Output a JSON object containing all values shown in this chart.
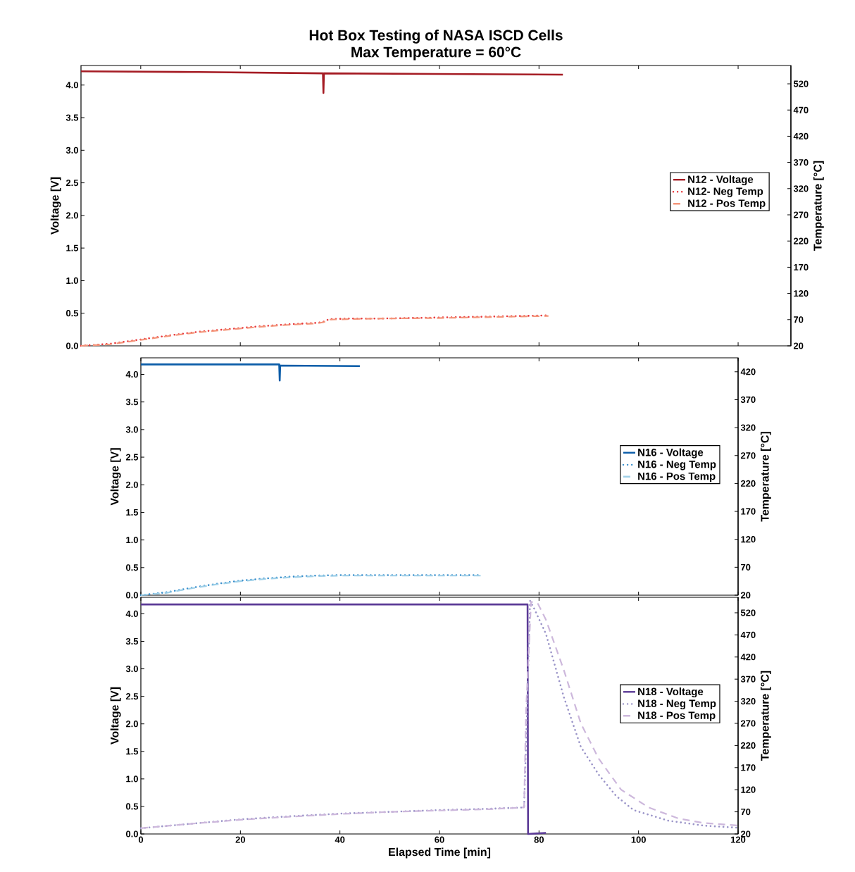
{
  "chart_data": [
    {
      "type": "line",
      "title": "Hot Box Testing of NASA ISCD Cells",
      "subtitle": "Max Temperature = 60°C",
      "ylabel": "Voltage [V]",
      "y2label": "Temperature [°C]",
      "xlim": [
        -12.0,
        130.6
      ],
      "xticks": [
        0,
        20,
        40,
        60,
        80,
        100,
        120
      ],
      "ylim": [
        0,
        4.3
      ],
      "yticks": [
        {
          "value": 0,
          "label": "0.0"
        },
        {
          "value": 0.5,
          "label": "0.5"
        },
        {
          "value": 1,
          "label": "1.0"
        },
        {
          "value": 1.5,
          "label": "1.5"
        },
        {
          "value": 2,
          "label": "2.0"
        },
        {
          "value": 2.5,
          "label": "2.5"
        },
        {
          "value": 3,
          "label": "3.0"
        },
        {
          "value": 3.5,
          "label": "3.5"
        },
        {
          "value": 4,
          "label": "4.0"
        }
      ],
      "y2lim": [
        20,
        555
      ],
      "y2ticks": [
        20,
        70,
        120,
        170,
        220,
        270,
        320,
        370,
        420,
        470,
        520
      ],
      "tick_labels": "y",
      "legend": "right",
      "series": [
        {
          "name": "N12 - Voltage",
          "color": "#a51c24",
          "line_style": "solid",
          "x": [
            -12.0,
            11.7,
            36.6,
            36.7,
            36.8,
            59.3,
            84.8
          ],
          "values": [
            4.21,
            4.2,
            4.18,
            3.88,
            4.18,
            4.17,
            4.16
          ]
        },
        {
          "name": "N12- Neg Temp",
          "color": "#e8383d",
          "line_style": "dotted",
          "axis": "y2",
          "x": [
            -12.0,
            -6.1,
            -0.1,
            5.8,
            11.7,
            17.7,
            23.6,
            29.6,
            35.5,
            36.7,
            37.9,
            41.5,
            47.4,
            59.3,
            71.2,
            81.9
          ],
          "values": [
            20,
            24,
            32,
            40,
            47,
            52,
            57,
            61,
            64,
            66,
            71,
            72,
            72,
            74,
            76,
            78
          ]
        },
        {
          "name": "N12 - Pos Temp",
          "color": "#f4957a",
          "line_style": "dashed",
          "axis": "y2",
          "x": [
            -12.0,
            -6.1,
            -0.1,
            5.8,
            11.7,
            17.7,
            23.6,
            29.6,
            35.5,
            36.7,
            37.9,
            41.5,
            47.4,
            59.3,
            71.2,
            81.9
          ],
          "values": [
            20,
            23,
            31,
            39,
            46,
            51,
            56,
            60,
            63,
            65,
            70,
            71,
            72,
            73,
            75,
            77
          ]
        }
      ]
    },
    {
      "type": "line",
      "ylabel": "Voltage [V]",
      "y2label": "Temperature [°C]",
      "xlim": [
        0,
        120
      ],
      "xticks": [
        0,
        20,
        40,
        60,
        80,
        100,
        120
      ],
      "ylim": [
        0,
        4.3
      ],
      "yticks": [
        {
          "value": 0,
          "label": "0.0"
        },
        {
          "value": 0.5,
          "label": "0.5"
        },
        {
          "value": 1,
          "label": "1.0"
        },
        {
          "value": 1.5,
          "label": "1.5"
        },
        {
          "value": 2,
          "label": "2.0"
        },
        {
          "value": 2.5,
          "label": "2.5"
        },
        {
          "value": 3,
          "label": "3.0"
        },
        {
          "value": 3.5,
          "label": "3.5"
        },
        {
          "value": 4,
          "label": "4.0"
        }
      ],
      "y2lim": [
        20,
        445
      ],
      "y2ticks": [
        20,
        70,
        120,
        170,
        220,
        270,
        320,
        370,
        420
      ],
      "tick_labels": "y",
      "legend": "right",
      "series": [
        {
          "name": "N16 - Voltage",
          "color": "#0a5ca8",
          "line_style": "solid",
          "x": [
            0,
            27.8,
            27.9,
            28,
            44
          ],
          "values": [
            4.18,
            4.18,
            3.89,
            4.16,
            4.15
          ]
        },
        {
          "name": "N16 - Neg Temp",
          "color": "#3a8fcc",
          "line_style": "dotted",
          "axis": "y2",
          "x": [
            0,
            5,
            10,
            15,
            20,
            25,
            30,
            35,
            40,
            50,
            60,
            68.3
          ],
          "values": [
            20,
            25,
            33,
            40,
            46,
            50,
            53,
            55,
            56,
            56,
            56,
            56
          ]
        },
        {
          "name": "N16 - Pos Temp",
          "color": "#9fd0e8",
          "line_style": "dashed",
          "axis": "y2",
          "x": [
            0,
            5,
            10,
            15,
            20,
            25,
            30,
            35,
            40,
            50,
            60,
            68.3
          ],
          "values": [
            20,
            24,
            32,
            39,
            45,
            49,
            52,
            54,
            55,
            55,
            55,
            55
          ]
        }
      ]
    },
    {
      "type": "line",
      "xlabel": "Elapsed Time [min]",
      "ylabel": "Voltage [V]",
      "y2label": "Temperature [°C]",
      "xlim": [
        0,
        120
      ],
      "xticks": [
        0,
        20,
        40,
        60,
        80,
        100,
        120
      ],
      "ylim": [
        0,
        4.3
      ],
      "yticks": [
        {
          "value": 0,
          "label": "0.0"
        },
        {
          "value": 0.5,
          "label": "0.5"
        },
        {
          "value": 1,
          "label": "1.0"
        },
        {
          "value": 1.5,
          "label": "1.5"
        },
        {
          "value": 2,
          "label": "2.0"
        },
        {
          "value": 2.5,
          "label": "2.5"
        },
        {
          "value": 3,
          "label": "3.0"
        },
        {
          "value": 3.5,
          "label": "3.5"
        },
        {
          "value": 4,
          "label": "4.0"
        }
      ],
      "y2lim": [
        20,
        555
      ],
      "y2ticks": [
        20,
        70,
        120,
        170,
        220,
        270,
        320,
        370,
        420,
        470,
        520
      ],
      "legend": "right",
      "series": [
        {
          "name": "N18 - Voltage",
          "color": "#5b3a96",
          "line_style": "solid",
          "x": [
            0,
            77.7,
            77.8,
            81.4
          ],
          "values": [
            4.17,
            4.17,
            0,
            0.02
          ]
        },
        {
          "name": "N18 - Neg Temp",
          "color": "#9a94c8",
          "line_style": "dotted",
          "axis": "y2",
          "x": [
            0,
            10,
            20,
            30,
            40,
            50,
            60,
            70,
            77,
            77.6,
            78.2,
            79,
            81.4,
            85,
            88.4,
            92,
            95.5,
            99,
            106,
            113,
            120
          ],
          "values": [
            33,
            43,
            53,
            60,
            66,
            70,
            74,
            77,
            80,
            300,
            547,
            530,
            472,
            329,
            217,
            154,
            106,
            74,
            50,
            39,
            34
          ]
        },
        {
          "name": "N18 - Pos Temp",
          "color": "#cdb8dc",
          "line_style": "dashed",
          "axis": "y2",
          "x": [
            0,
            10,
            20,
            30,
            40,
            50,
            60,
            70,
            77,
            77.4,
            78.4,
            79.8,
            81.4,
            85,
            88.4,
            92,
            96.5,
            102,
            108,
            113,
            120
          ],
          "values": [
            33,
            43,
            52,
            59,
            65,
            70,
            73,
            76,
            80,
            300,
            545,
            540,
            504,
            390,
            270,
            190,
            120,
            80,
            55,
            45,
            39
          ]
        }
      ]
    }
  ]
}
